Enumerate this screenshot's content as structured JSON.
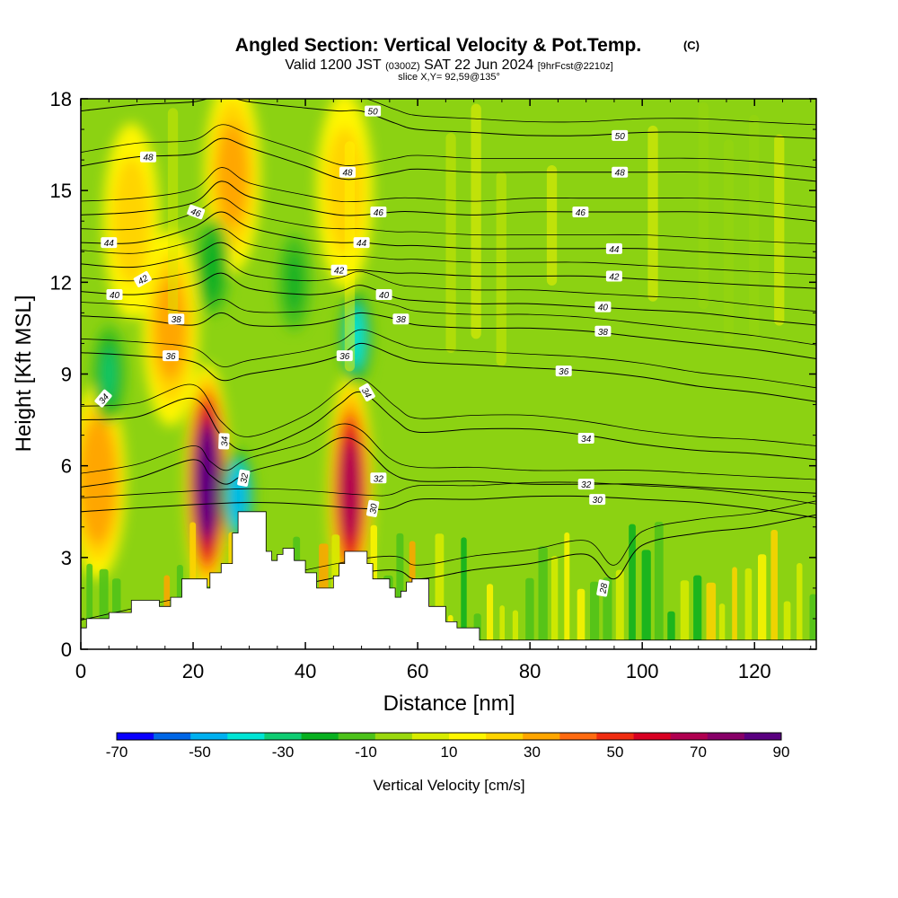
{
  "title": {
    "main": "Angled Section: Vertical Velocity & Pot.Temp.",
    "main_units": "(C)",
    "valid_prefix": "Valid 1200 JST",
    "valid_utc": "(0300Z)",
    "valid_date": "SAT 22 Jun 2024",
    "valid_fcst": "[9hrFcst@2210z]",
    "slice": "slice X,Y= 92,59@135°"
  },
  "colorbar": {
    "title": "Vertical Velocity [cm/s]",
    "tick_labels": [
      "-70",
      "-50",
      "-30",
      "-10",
      "10",
      "30",
      "50",
      "70",
      "90"
    ],
    "colors": [
      "#0a00ff",
      "#0066e6",
      "#00b0f0",
      "#00e5d5",
      "#0ecc72",
      "#08b020",
      "#4cc21a",
      "#9ad80e",
      "#d8ec00",
      "#fff600",
      "#ffd400",
      "#ffa600",
      "#ff6a10",
      "#f02c10",
      "#d80022",
      "#b00050",
      "#880068",
      "#5a0080"
    ]
  },
  "chart_data": {
    "type": "heatmap",
    "title": "Angled Section: Vertical Velocity & Pot.Temp.",
    "xlabel": "Distance [nm]",
    "ylabel": "Height [Kft MSL]",
    "xlim": [
      0,
      131
    ],
    "ylim": [
      0,
      18
    ],
    "x_ticks": [
      "0",
      "20",
      "40",
      "60",
      "80",
      "100",
      "120"
    ],
    "y_ticks": [
      "0",
      "3",
      "6",
      "9",
      "12",
      "15",
      "18"
    ],
    "fill_variable": "Vertical Velocity [cm/s]",
    "fill_range": [
      -70,
      90
    ],
    "updrafts": [
      {
        "x": 22.5,
        "y": 5.5,
        "peak": 85
      },
      {
        "x": 48,
        "y": 5.2,
        "peak": 65
      },
      {
        "x": 3,
        "y": 5.5,
        "peak": 35
      },
      {
        "x": 27,
        "y": 15.5,
        "peak": 30
      },
      {
        "x": 16,
        "y": 10.5,
        "peak": 30
      },
      {
        "x": 9,
        "y": 14,
        "peak": 18
      },
      {
        "x": 47,
        "y": 15,
        "peak": 18
      }
    ],
    "downdrafts": [
      {
        "x": 49,
        "y": 10.2,
        "peak": -42
      },
      {
        "x": 5,
        "y": 9,
        "peak": -32
      },
      {
        "x": 28,
        "y": 5,
        "peak": -50
      },
      {
        "x": 23.5,
        "y": 12.5,
        "peak": -22
      },
      {
        "x": 38,
        "y": 12,
        "peak": -18
      }
    ],
    "terrain_profile": {
      "x": [
        0,
        1,
        5,
        9,
        14,
        16,
        18,
        22,
        22.5,
        23,
        25,
        27,
        28,
        30,
        33,
        34,
        35,
        36,
        38,
        40,
        42,
        44,
        45,
        46,
        47,
        48,
        51,
        52,
        55,
        56,
        57,
        58,
        59,
        62,
        65,
        67,
        71,
        71.5,
        131
      ],
      "height": [
        0.7,
        1.0,
        1.2,
        1.6,
        1.4,
        1.7,
        2.3,
        2.3,
        2.0,
        2.5,
        2.8,
        3.8,
        4.5,
        4.5,
        3.2,
        2.9,
        3.1,
        3.3,
        2.9,
        2.5,
        2.0,
        2.0,
        2.4,
        2.8,
        3.2,
        3.2,
        2.8,
        2.3,
        2.0,
        1.7,
        1.9,
        2.2,
        2.3,
        1.4,
        0.9,
        0.7,
        0.3,
        0.3,
        0.3
      ]
    },
    "pot_temp_contours": [
      {
        "label": "28",
        "x": [
          0,
          50,
          60,
          70,
          80,
          90,
          95,
          100,
          110,
          120,
          131
        ],
        "y": [
          0.5,
          2.5,
          2.3,
          2.6,
          2.8,
          3.1,
          2.3,
          3.4,
          3.8,
          4.0,
          4.4
        ]
      },
      {
        "label": "30",
        "x": [
          0,
          30,
          50,
          55,
          60,
          70,
          80,
          90,
          100,
          110,
          120,
          131
        ],
        "y": [
          4.5,
          4.8,
          4.6,
          4.6,
          4.9,
          4.9,
          5.0,
          5.0,
          4.9,
          4.8,
          4.6,
          4.3
        ]
      },
      {
        "label": "32",
        "x": [
          0,
          10,
          20,
          23,
          26,
          30,
          40,
          46,
          50,
          55,
          60,
          70,
          80,
          90,
          100,
          110,
          120,
          131
        ],
        "y": [
          5.3,
          5.6,
          6.2,
          5.7,
          5.4,
          5.8,
          6.3,
          6.9,
          6.7,
          5.8,
          5.5,
          5.5,
          5.4,
          5.4,
          5.4,
          5.3,
          5.2,
          5.1
        ]
      },
      {
        "label": "34",
        "x": [
          0,
          10,
          20,
          25,
          30,
          40,
          46,
          50,
          56,
          60,
          70,
          80,
          90,
          100,
          110,
          120,
          131
        ],
        "y": [
          7.5,
          7.6,
          8.2,
          7.0,
          6.5,
          7.2,
          8.0,
          8.4,
          7.5,
          7.1,
          7.2,
          7.2,
          7.0,
          6.7,
          6.5,
          6.4,
          6.2
        ]
      },
      {
        "label": "36",
        "x": [
          0,
          10,
          20,
          25,
          30,
          40,
          46,
          50,
          56,
          60,
          70,
          80,
          90,
          100,
          110,
          120,
          131
        ],
        "y": [
          9.7,
          9.6,
          9.4,
          8.8,
          9.0,
          9.3,
          9.6,
          10.0,
          9.6,
          9.4,
          9.3,
          9.2,
          9.1,
          8.9,
          8.6,
          8.4,
          8.1
        ]
      },
      {
        "label": "38",
        "x": [
          0,
          10,
          20,
          25,
          30,
          40,
          46,
          50,
          56,
          60,
          70,
          80,
          90,
          100,
          110,
          120,
          131
        ],
        "y": [
          10.9,
          10.8,
          10.6,
          11.0,
          10.6,
          10.6,
          10.8,
          11.0,
          10.8,
          10.6,
          10.5,
          10.5,
          10.4,
          10.2,
          10.0,
          9.8,
          9.5
        ]
      },
      {
        "label": "40",
        "x": [
          0,
          10,
          20,
          25,
          30,
          40,
          46,
          50,
          56,
          60,
          70,
          80,
          90,
          100,
          110,
          120,
          131
        ],
        "y": [
          11.7,
          11.6,
          11.9,
          12.3,
          11.8,
          11.6,
          11.7,
          11.9,
          11.5,
          11.4,
          11.3,
          11.3,
          11.2,
          11.1,
          11.0,
          10.8,
          10.6
        ]
      },
      {
        "label": "42",
        "x": [
          0,
          10,
          20,
          25,
          30,
          40,
          46,
          50,
          56,
          60,
          70,
          80,
          90,
          100,
          110,
          120,
          131
        ],
        "y": [
          12.6,
          12.5,
          12.9,
          13.3,
          12.8,
          12.5,
          12.4,
          12.4,
          12.3,
          12.3,
          12.2,
          12.2,
          12.2,
          12.1,
          12.0,
          11.9,
          11.8
        ]
      },
      {
        "label": "44",
        "x": [
          0,
          10,
          20,
          25,
          30,
          40,
          46,
          50,
          56,
          60,
          70,
          80,
          90,
          100,
          110,
          120,
          131
        ],
        "y": [
          13.3,
          13.3,
          13.8,
          14.3,
          13.8,
          13.4,
          13.3,
          13.3,
          13.2,
          13.2,
          13.1,
          13.1,
          13.1,
          13.1,
          13.0,
          12.9,
          12.8
        ]
      },
      {
        "label": "46",
        "x": [
          0,
          10,
          20,
          25,
          30,
          40,
          46,
          50,
          56,
          60,
          70,
          80,
          90,
          100,
          110,
          120,
          131
        ],
        "y": [
          14.2,
          14.3,
          14.6,
          15.3,
          14.8,
          14.4,
          14.2,
          14.2,
          14.3,
          14.3,
          14.2,
          14.3,
          14.3,
          14.3,
          14.3,
          14.2,
          14.0
        ]
      },
      {
        "label": "48",
        "x": [
          0,
          10,
          20,
          25,
          30,
          40,
          46,
          50,
          56,
          60,
          70,
          80,
          90,
          100,
          110,
          120,
          131
        ],
        "y": [
          15.8,
          16.1,
          16.2,
          16.7,
          16.4,
          15.8,
          15.4,
          15.4,
          15.6,
          15.7,
          15.6,
          15.6,
          15.6,
          15.6,
          15.6,
          15.5,
          15.3
        ]
      },
      {
        "label": "50",
        "x": [
          0,
          10,
          20,
          25,
          30,
          40,
          46,
          50,
          56,
          60,
          70,
          80,
          90,
          100,
          110,
          120,
          131
        ],
        "y": [
          17.6,
          17.8,
          17.9,
          18.1,
          17.9,
          17.7,
          17.6,
          17.6,
          17.2,
          17.0,
          16.9,
          16.8,
          16.8,
          16.9,
          16.9,
          16.8,
          16.7
        ]
      }
    ],
    "contour_labels": [
      {
        "text": "28",
        "x": 93,
        "y": 2.0,
        "angle": -80
      },
      {
        "text": "30",
        "x": 92,
        "y": 4.9,
        "angle": 0
      },
      {
        "text": "30",
        "x": 52,
        "y": 4.6,
        "angle": -80
      },
      {
        "text": "32",
        "x": 90,
        "y": 5.4,
        "angle": 0
      },
      {
        "text": "32",
        "x": 53,
        "y": 5.6,
        "angle": 0
      },
      {
        "text": "32",
        "x": 29,
        "y": 5.6,
        "angle": -80
      },
      {
        "text": "34",
        "x": 90,
        "y": 6.9,
        "angle": 0
      },
      {
        "text": "34",
        "x": 51,
        "y": 8.4,
        "angle": 60
      },
      {
        "text": "34",
        "x": 25.5,
        "y": 6.8,
        "angle": -88
      },
      {
        "text": "34",
        "x": 4,
        "y": 8.2,
        "angle": -50
      },
      {
        "text": "36",
        "x": 86,
        "y": 9.1,
        "angle": 0
      },
      {
        "text": "36",
        "x": 47,
        "y": 9.6,
        "angle": 0
      },
      {
        "text": "36",
        "x": 16,
        "y": 9.6,
        "angle": 0
      },
      {
        "text": "38",
        "x": 93,
        "y": 10.4,
        "angle": 0
      },
      {
        "text": "38",
        "x": 57,
        "y": 10.8,
        "angle": 0
      },
      {
        "text": "38",
        "x": 17,
        "y": 10.8,
        "angle": 0
      },
      {
        "text": "40",
        "x": 93,
        "y": 11.2,
        "angle": 0
      },
      {
        "text": "40",
        "x": 54,
        "y": 11.6,
        "angle": 0
      },
      {
        "text": "40",
        "x": 6,
        "y": 11.6,
        "angle": 0
      },
      {
        "text": "42",
        "x": 95,
        "y": 12.2,
        "angle": 0
      },
      {
        "text": "42",
        "x": 46,
        "y": 12.4,
        "angle": 0
      },
      {
        "text": "42",
        "x": 11,
        "y": 12.1,
        "angle": -30
      },
      {
        "text": "44",
        "x": 95,
        "y": 13.1,
        "angle": 0
      },
      {
        "text": "44",
        "x": 50,
        "y": 13.3,
        "angle": 0
      },
      {
        "text": "44",
        "x": 5,
        "y": 13.3,
        "angle": 0
      },
      {
        "text": "46",
        "x": 89,
        "y": 14.3,
        "angle": 0
      },
      {
        "text": "46",
        "x": 53,
        "y": 14.3,
        "angle": 0
      },
      {
        "text": "46",
        "x": 20.5,
        "y": 14.3,
        "angle": 20
      },
      {
        "text": "48",
        "x": 96,
        "y": 15.6,
        "angle": 0
      },
      {
        "text": "48",
        "x": 47.5,
        "y": 15.6,
        "angle": 0
      },
      {
        "text": "48",
        "x": 12,
        "y": 16.1,
        "angle": 0
      },
      {
        "text": "50",
        "x": 96,
        "y": 16.8,
        "angle": 0
      },
      {
        "text": "50",
        "x": 52,
        "y": 17.6,
        "angle": 0
      }
    ]
  }
}
